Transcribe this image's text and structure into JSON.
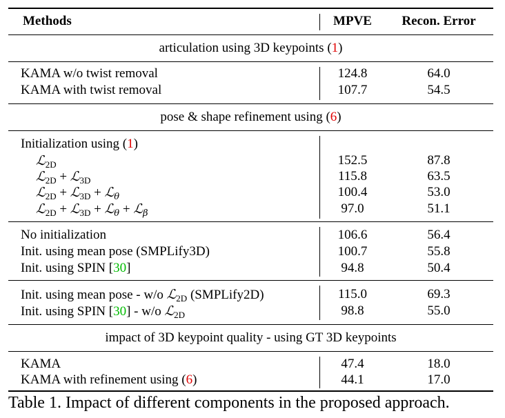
{
  "header": {
    "methods": "Methods",
    "mpve": "MPVE",
    "recon": "Recon. Error"
  },
  "sections": {
    "s1_pre": "articulation using 3D keypoints (",
    "s1_ref": "1",
    "s1_post": ")",
    "s2_pre": "pose & shape refinement using (",
    "s2_ref": "6",
    "s2_post": ")",
    "s3": "impact of 3D keypoint quality - using GT 3D keypoints"
  },
  "rows": {
    "r1": {
      "label": "KAMA w/o twist removal",
      "mpve": "124.8",
      "recon": "64.0"
    },
    "r2": {
      "label": "KAMA with twist removal",
      "mpve": "107.7",
      "recon": "54.5"
    },
    "r3": {
      "label_pre": "Initialization using (",
      "ref": "1",
      "label_post": ")"
    },
    "r4": {
      "mpve": "152.5",
      "recon": "87.8"
    },
    "r5": {
      "mpve": "115.8",
      "recon": "63.5"
    },
    "r6": {
      "mpve": "100.4",
      "recon": "53.0"
    },
    "r7": {
      "mpve": "97.0",
      "recon": "51.1"
    },
    "r8": {
      "label": "No initialization",
      "mpve": "106.6",
      "recon": "56.4"
    },
    "r9": {
      "label": "Init. using mean pose (SMPLify3D)",
      "mpve": "100.7",
      "recon": "55.8"
    },
    "r10": {
      "label_pre": "Init. using SPIN [",
      "ref": "30",
      "label_post": "]",
      "mpve": "94.8",
      "recon": "50.4"
    },
    "r11": {
      "label_pre": "Init. using mean pose - w/o ",
      "label_post": " (SMPLify2D)",
      "mpve": "115.0",
      "recon": "69.3"
    },
    "r12": {
      "label_pre": "Init. using SPIN [",
      "ref": "30",
      "label_mid": "] - w/o ",
      "mpve": "98.8",
      "recon": "55.0"
    },
    "r13": {
      "label": "KAMA",
      "mpve": "47.4",
      "recon": "18.0"
    },
    "r14": {
      "label_pre": "KAMA with refinement using (",
      "ref": "6",
      "label_post": ")",
      "mpve": "44.1",
      "recon": "17.0"
    }
  },
  "math": {
    "L": "ℒ",
    "plus": " + ",
    "s2d": "2D",
    "s3d": "3D",
    "theta": "θ",
    "beta": "β"
  },
  "caption": "Table 1. Impact of different components in the proposed approach."
}
